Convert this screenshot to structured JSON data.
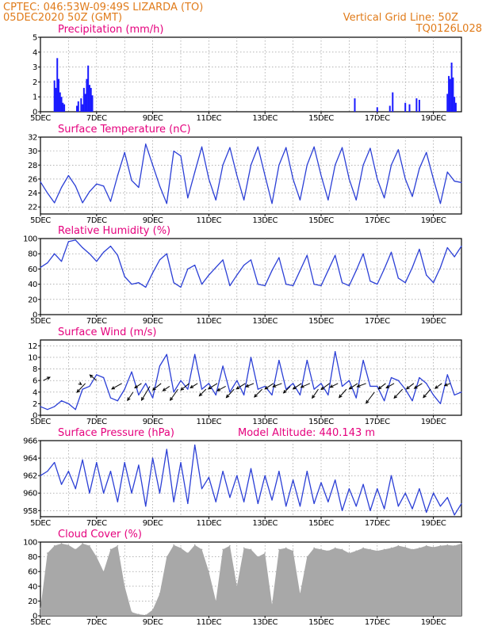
{
  "header": {
    "station": "CPTEC:   046:53W-09:49S   LIZARDA (TO)",
    "date": "05DEC2020 50Z (GMT)",
    "grid_note": "Vertical Grid Line: 50Z",
    "model_code": "TQ0126L028"
  },
  "x_axis": {
    "tick_labels": [
      "5DEC",
      "7DEC",
      "9DEC",
      "11DEC",
      "13DEC",
      "15DEC",
      "17DEC",
      "19DEC"
    ],
    "day_range": [
      5,
      20
    ]
  },
  "colors": {
    "header": "#e07b1a",
    "title": "#e5007d",
    "line": "#2b3fd6",
    "bar": "#1a1aff",
    "cloud": "#a8a8a8",
    "grid": "#888888"
  },
  "chart_data": [
    {
      "id": "precip",
      "type": "bar",
      "title": "Precipitation (mm/h)",
      "ylim": [
        0,
        5
      ],
      "yticks": [
        "0",
        "1",
        "2",
        "3",
        "4",
        "5"
      ],
      "x": [
        5.5,
        5.55,
        5.6,
        5.65,
        5.7,
        5.75,
        5.8,
        5.85,
        6.3,
        6.35,
        6.45,
        6.5,
        6.55,
        6.6,
        6.65,
        6.7,
        6.75,
        6.8,
        6.85,
        16.2,
        17.0,
        17.45,
        17.55,
        18.0,
        18.15,
        18.4,
        18.5,
        19.5,
        19.55,
        19.6,
        19.65,
        19.7,
        19.75,
        19.8
      ],
      "values": [
        2.1,
        1.6,
        3.6,
        2.2,
        1.3,
        1.0,
        0.6,
        0.5,
        0.4,
        0.7,
        0.9,
        0.5,
        1.6,
        1.2,
        2.2,
        3.1,
        1.8,
        1.6,
        1.1,
        0.9,
        0.3,
        0.4,
        1.3,
        0.6,
        0.5,
        0.9,
        0.8,
        1.2,
        2.4,
        2.2,
        3.3,
        2.3,
        1.0,
        0.6
      ]
    },
    {
      "id": "temp",
      "type": "line",
      "title": "Surface Temperature (nC)",
      "ylim": [
        21,
        32
      ],
      "yticks": [
        "22",
        "24",
        "26",
        "28",
        "30",
        "32"
      ],
      "x": [
        5.0,
        5.25,
        5.5,
        5.75,
        6.0,
        6.25,
        6.5,
        6.75,
        7.0,
        7.25,
        7.5,
        7.75,
        8.0,
        8.25,
        8.5,
        8.75,
        9.0,
        9.25,
        9.5,
        9.75,
        10.0,
        10.25,
        10.5,
        10.75,
        11.0,
        11.25,
        11.5,
        11.75,
        12.0,
        12.25,
        12.5,
        12.75,
        13.0,
        13.25,
        13.5,
        13.75,
        14.0,
        14.25,
        14.5,
        14.75,
        15.0,
        15.25,
        15.5,
        15.75,
        16.0,
        16.25,
        16.5,
        16.75,
        17.0,
        17.25,
        17.5,
        17.75,
        18.0,
        18.25,
        18.5,
        18.75,
        19.0,
        19.25,
        19.5,
        19.75,
        20.0
      ],
      "values": [
        25.6,
        24.0,
        22.6,
        24.8,
        26.5,
        25.0,
        22.6,
        24.2,
        25.3,
        25.0,
        22.8,
        26.5,
        29.8,
        25.8,
        24.8,
        31.0,
        28.0,
        25.0,
        22.5,
        30.0,
        29.3,
        23.3,
        27.0,
        30.6,
        26.0,
        23.0,
        28.0,
        30.5,
        26.5,
        23.0,
        28.0,
        30.6,
        26.5,
        22.5,
        28.0,
        30.5,
        26.0,
        23.0,
        28.0,
        30.6,
        26.5,
        23.0,
        28.0,
        30.5,
        26.0,
        23.0,
        28.0,
        30.4,
        26.0,
        23.3,
        28.0,
        30.2,
        26.0,
        23.5,
        27.5,
        29.8,
        26.0,
        22.5,
        27.0,
        25.7,
        25.5
      ]
    },
    {
      "id": "rh",
      "type": "line",
      "title": "Relative Humidity (%)",
      "ylim": [
        0,
        100
      ],
      "yticks": [
        "0",
        "20",
        "40",
        "60",
        "80",
        "100"
      ],
      "x": [
        5.0,
        5.25,
        5.5,
        5.75,
        6.0,
        6.25,
        6.5,
        6.75,
        7.0,
        7.25,
        7.5,
        7.75,
        8.0,
        8.25,
        8.5,
        8.75,
        9.0,
        9.25,
        9.5,
        9.75,
        10.0,
        10.25,
        10.5,
        10.75,
        11.0,
        11.25,
        11.5,
        11.75,
        12.0,
        12.25,
        12.5,
        12.75,
        13.0,
        13.25,
        13.5,
        13.75,
        14.0,
        14.25,
        14.5,
        14.75,
        15.0,
        15.25,
        15.5,
        15.75,
        16.0,
        16.25,
        16.5,
        16.75,
        17.0,
        17.25,
        17.5,
        17.75,
        18.0,
        18.25,
        18.5,
        18.75,
        19.0,
        19.25,
        19.5,
        19.75,
        20.0
      ],
      "values": [
        62,
        68,
        80,
        70,
        96,
        98,
        88,
        80,
        70,
        82,
        90,
        78,
        50,
        40,
        42,
        36,
        55,
        72,
        80,
        42,
        36,
        60,
        65,
        40,
        52,
        62,
        72,
        38,
        52,
        65,
        72,
        40,
        38,
        58,
        75,
        40,
        38,
        58,
        78,
        40,
        38,
        58,
        78,
        42,
        38,
        58,
        80,
        44,
        40,
        60,
        82,
        48,
        42,
        62,
        86,
        52,
        42,
        62,
        88,
        76,
        90
      ]
    },
    {
      "id": "wind",
      "type": "line",
      "title": "Surface Wind (m/s)",
      "ylim": [
        0,
        13
      ],
      "yticks": [
        "0",
        "2",
        "4",
        "6",
        "8",
        "10",
        "12"
      ],
      "x": [
        5.0,
        5.25,
        5.5,
        5.75,
        6.0,
        6.25,
        6.5,
        6.75,
        7.0,
        7.25,
        7.5,
        7.75,
        8.0,
        8.25,
        8.5,
        8.75,
        9.0,
        9.25,
        9.5,
        9.75,
        10.0,
        10.25,
        10.5,
        10.75,
        11.0,
        11.25,
        11.5,
        11.75,
        12.0,
        12.25,
        12.5,
        12.75,
        13.0,
        13.25,
        13.5,
        13.75,
        14.0,
        14.25,
        14.5,
        14.75,
        15.0,
        15.25,
        15.5,
        15.75,
        16.0,
        16.25,
        16.5,
        16.75,
        17.0,
        17.25,
        17.5,
        17.75,
        18.0,
        18.25,
        18.5,
        18.75,
        19.0,
        19.25,
        19.5,
        19.75,
        20.0
      ],
      "values": [
        1.5,
        1.0,
        1.5,
        2.5,
        2.0,
        1.0,
        4.5,
        5.0,
        7.0,
        6.5,
        3.0,
        2.5,
        4.5,
        7.5,
        3.5,
        5.5,
        3.0,
        8.5,
        10.5,
        4.0,
        6.0,
        4.5,
        10.5,
        4.5,
        5.5,
        3.5,
        8.5,
        4.0,
        6.0,
        3.5,
        10.0,
        4.5,
        5.0,
        3.5,
        9.5,
        4.5,
        5.5,
        3.5,
        9.5,
        4.5,
        5.5,
        3.5,
        11.0,
        5.0,
        6.0,
        3.0,
        9.5,
        5.0,
        5.0,
        2.5,
        6.5,
        6.0,
        4.5,
        2.5,
        6.5,
        5.5,
        3.5,
        2.0,
        7.0,
        3.5,
        4.0
      ],
      "arrows": {
        "x": [
          5.1,
          6.4,
          6.6,
          7.0,
          7.9,
          8.3,
          8.6,
          8.9,
          9.3,
          9.6,
          9.9,
          10.3,
          10.6,
          10.9,
          11.3,
          11.6,
          11.9,
          12.3,
          12.6,
          12.9,
          13.3,
          13.6,
          13.9,
          14.3,
          14.6,
          14.9,
          15.3,
          15.6,
          15.9,
          16.3,
          16.6,
          16.9,
          17.3,
          17.6,
          17.9,
          18.3,
          18.6,
          18.9,
          19.3,
          19.6
        ],
        "y": [
          6.0,
          5.5,
          5.5,
          6.0,
          5.5,
          4.0,
          5.5,
          5.0,
          5.5,
          5.0,
          4.5,
          5.5,
          5.5,
          4.5,
          5.5,
          5.0,
          4.5,
          5.5,
          5.5,
          4.5,
          5.5,
          5.5,
          5.0,
          5.5,
          5.5,
          4.5,
          5.5,
          5.5,
          4.5,
          5.5,
          5.5,
          4.0,
          5.5,
          5.5,
          4.5,
          5.5,
          5.5,
          4.5,
          5.5,
          5.5
        ],
        "u": [
          1.2,
          0.3,
          -1.5,
          -1.2,
          -1.8,
          -1.0,
          -1.2,
          -1.5,
          -1.5,
          -1.2,
          -1.4,
          -1.5,
          -1.3,
          -1.2,
          -1.6,
          -1.5,
          -1.4,
          -1.6,
          -1.4,
          -1.4,
          -1.5,
          -1.6,
          -1.2,
          -1.5,
          -1.6,
          -1.1,
          -1.5,
          -1.4,
          -1.3,
          -1.5,
          -1.6,
          -1.5,
          -1.3,
          -1.4,
          -1.5,
          -1.3,
          -1.4,
          -1.3,
          -1.2,
          -1.0
        ],
        "v": [
          0.6,
          -0.2,
          -1.6,
          1.0,
          -1.0,
          -1.5,
          -0.8,
          -2.5,
          -1.2,
          -0.8,
          -2.0,
          -1.2,
          -0.8,
          -1.2,
          -1.0,
          -0.8,
          -1.5,
          -1.0,
          -0.6,
          -1.4,
          -1.0,
          -0.6,
          -1.2,
          -1.0,
          -0.7,
          -1.6,
          -1.1,
          -0.7,
          -1.5,
          -1.0,
          -0.6,
          -2.0,
          -1.0,
          -0.8,
          -1.6,
          -1.0,
          -0.9,
          -1.5,
          -0.9,
          -0.4
        ]
      }
    },
    {
      "id": "pressure",
      "type": "line",
      "title": "Surface Pressure (hPa)",
      "subtitle": "Model Altitude: 440.143 m",
      "ylim": [
        957.3,
        966
      ],
      "yticks": [
        "958",
        "960",
        "962",
        "964",
        "966"
      ],
      "x": [
        5.0,
        5.25,
        5.5,
        5.75,
        6.0,
        6.25,
        6.5,
        6.75,
        7.0,
        7.25,
        7.5,
        7.75,
        8.0,
        8.25,
        8.5,
        8.75,
        9.0,
        9.25,
        9.5,
        9.75,
        10.0,
        10.25,
        10.5,
        10.75,
        11.0,
        11.25,
        11.5,
        11.75,
        12.0,
        12.25,
        12.5,
        12.75,
        13.0,
        13.25,
        13.5,
        13.75,
        14.0,
        14.25,
        14.5,
        14.75,
        15.0,
        15.25,
        15.5,
        15.75,
        16.0,
        16.25,
        16.5,
        16.75,
        17.0,
        17.25,
        17.5,
        17.75,
        18.0,
        18.25,
        18.5,
        18.75,
        19.0,
        19.25,
        19.5,
        19.75,
        20.0
      ],
      "values": [
        962.0,
        962.5,
        963.5,
        961.0,
        962.5,
        960.5,
        963.8,
        960.0,
        963.5,
        960.0,
        962.5,
        959.0,
        963.5,
        960.0,
        963.2,
        958.5,
        964.0,
        960.0,
        965.0,
        959.0,
        963.5,
        958.8,
        965.5,
        960.5,
        961.8,
        959.0,
        962.5,
        959.5,
        962.0,
        959.0,
        962.8,
        958.8,
        962.0,
        959.2,
        962.5,
        958.5,
        961.5,
        958.5,
        962.5,
        958.8,
        961.2,
        959.0,
        961.5,
        958.0,
        960.5,
        958.5,
        961.0,
        958.0,
        960.5,
        958.2,
        962.0,
        958.5,
        960.0,
        958.2,
        960.5,
        957.8,
        960.0,
        958.5,
        959.5,
        957.5,
        958.8
      ]
    },
    {
      "id": "cloud",
      "type": "area",
      "title": "Cloud Cover (%)",
      "ylim": [
        0,
        100
      ],
      "yticks": [
        "0",
        "20",
        "40",
        "60",
        "80",
        "100"
      ],
      "x": [
        5.0,
        5.25,
        5.5,
        5.75,
        6.0,
        6.25,
        6.5,
        6.75,
        7.0,
        7.25,
        7.5,
        7.75,
        8.0,
        8.25,
        8.5,
        8.75,
        9.0,
        9.25,
        9.5,
        9.75,
        10.0,
        10.25,
        10.5,
        10.75,
        11.0,
        11.25,
        11.5,
        11.75,
        12.0,
        12.25,
        12.5,
        12.75,
        13.0,
        13.25,
        13.5,
        13.75,
        14.0,
        14.25,
        14.5,
        14.75,
        15.0,
        15.25,
        15.5,
        15.75,
        16.0,
        16.25,
        16.5,
        16.75,
        17.0,
        17.25,
        17.5,
        17.75,
        18.0,
        18.25,
        18.5,
        18.75,
        19.0,
        19.25,
        19.5,
        19.75,
        20.0
      ],
      "values": [
        10,
        85,
        95,
        98,
        96,
        90,
        98,
        95,
        80,
        60,
        90,
        95,
        40,
        5,
        2,
        1,
        8,
        30,
        80,
        96,
        92,
        85,
        96,
        90,
        60,
        20,
        90,
        95,
        40,
        92,
        90,
        80,
        85,
        15,
        90,
        92,
        88,
        30,
        80,
        92,
        90,
        88,
        92,
        90,
        85,
        88,
        92,
        90,
        88,
        90,
        92,
        95,
        93,
        90,
        92,
        95,
        93,
        95,
        96,
        95,
        98
      ]
    }
  ]
}
